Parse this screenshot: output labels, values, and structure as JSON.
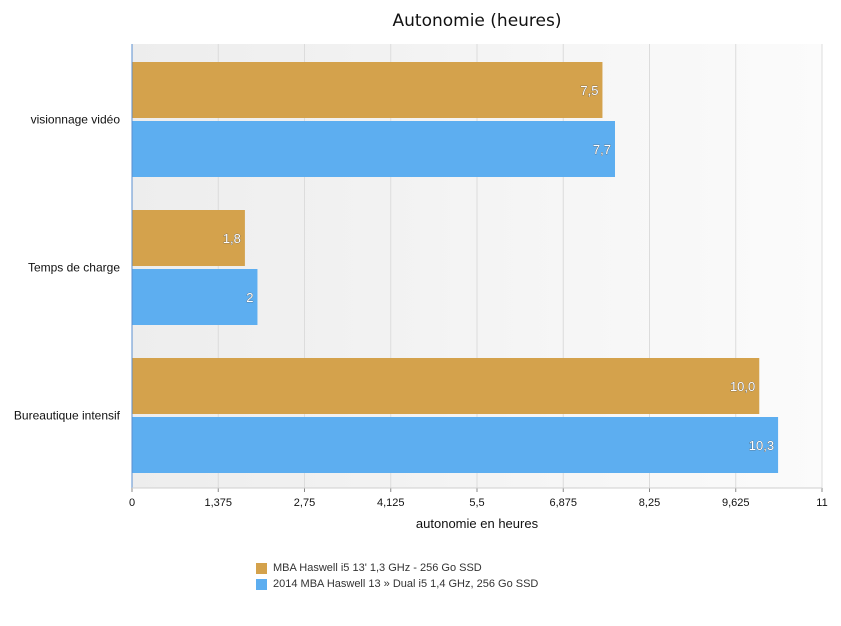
{
  "chart_data": {
    "type": "bar",
    "orientation": "horizontal",
    "title": "Autonomie (heures)",
    "xlabel": "autonomie en heures",
    "ylabel": "",
    "xlim": [
      0,
      11
    ],
    "xticks": [
      "0",
      "1,375",
      "2,75",
      "4,125",
      "5,5",
      "6,875",
      "8,25",
      "9,625",
      "11"
    ],
    "grid": true,
    "legend_position": "bottom",
    "categories": [
      "visionnage vidéo",
      "Temps de charge",
      "Bureautique intensif"
    ],
    "series": [
      {
        "name": "MBA Haswell i5 13' 1,3 GHz - 256 Go SSD",
        "color": "#d4a24c",
        "values": [
          7.5,
          1.8,
          10.0
        ],
        "labels": [
          "7,5",
          "1,8",
          "10,0"
        ]
      },
      {
        "name": "2014 MBA Haswell 13 » Dual i5 1,4 GHz, 256 Go SSD",
        "color": "#5daef0",
        "values": [
          7.7,
          2,
          10.3
        ],
        "labels": [
          "7,7",
          "2",
          "10,3"
        ]
      }
    ]
  }
}
